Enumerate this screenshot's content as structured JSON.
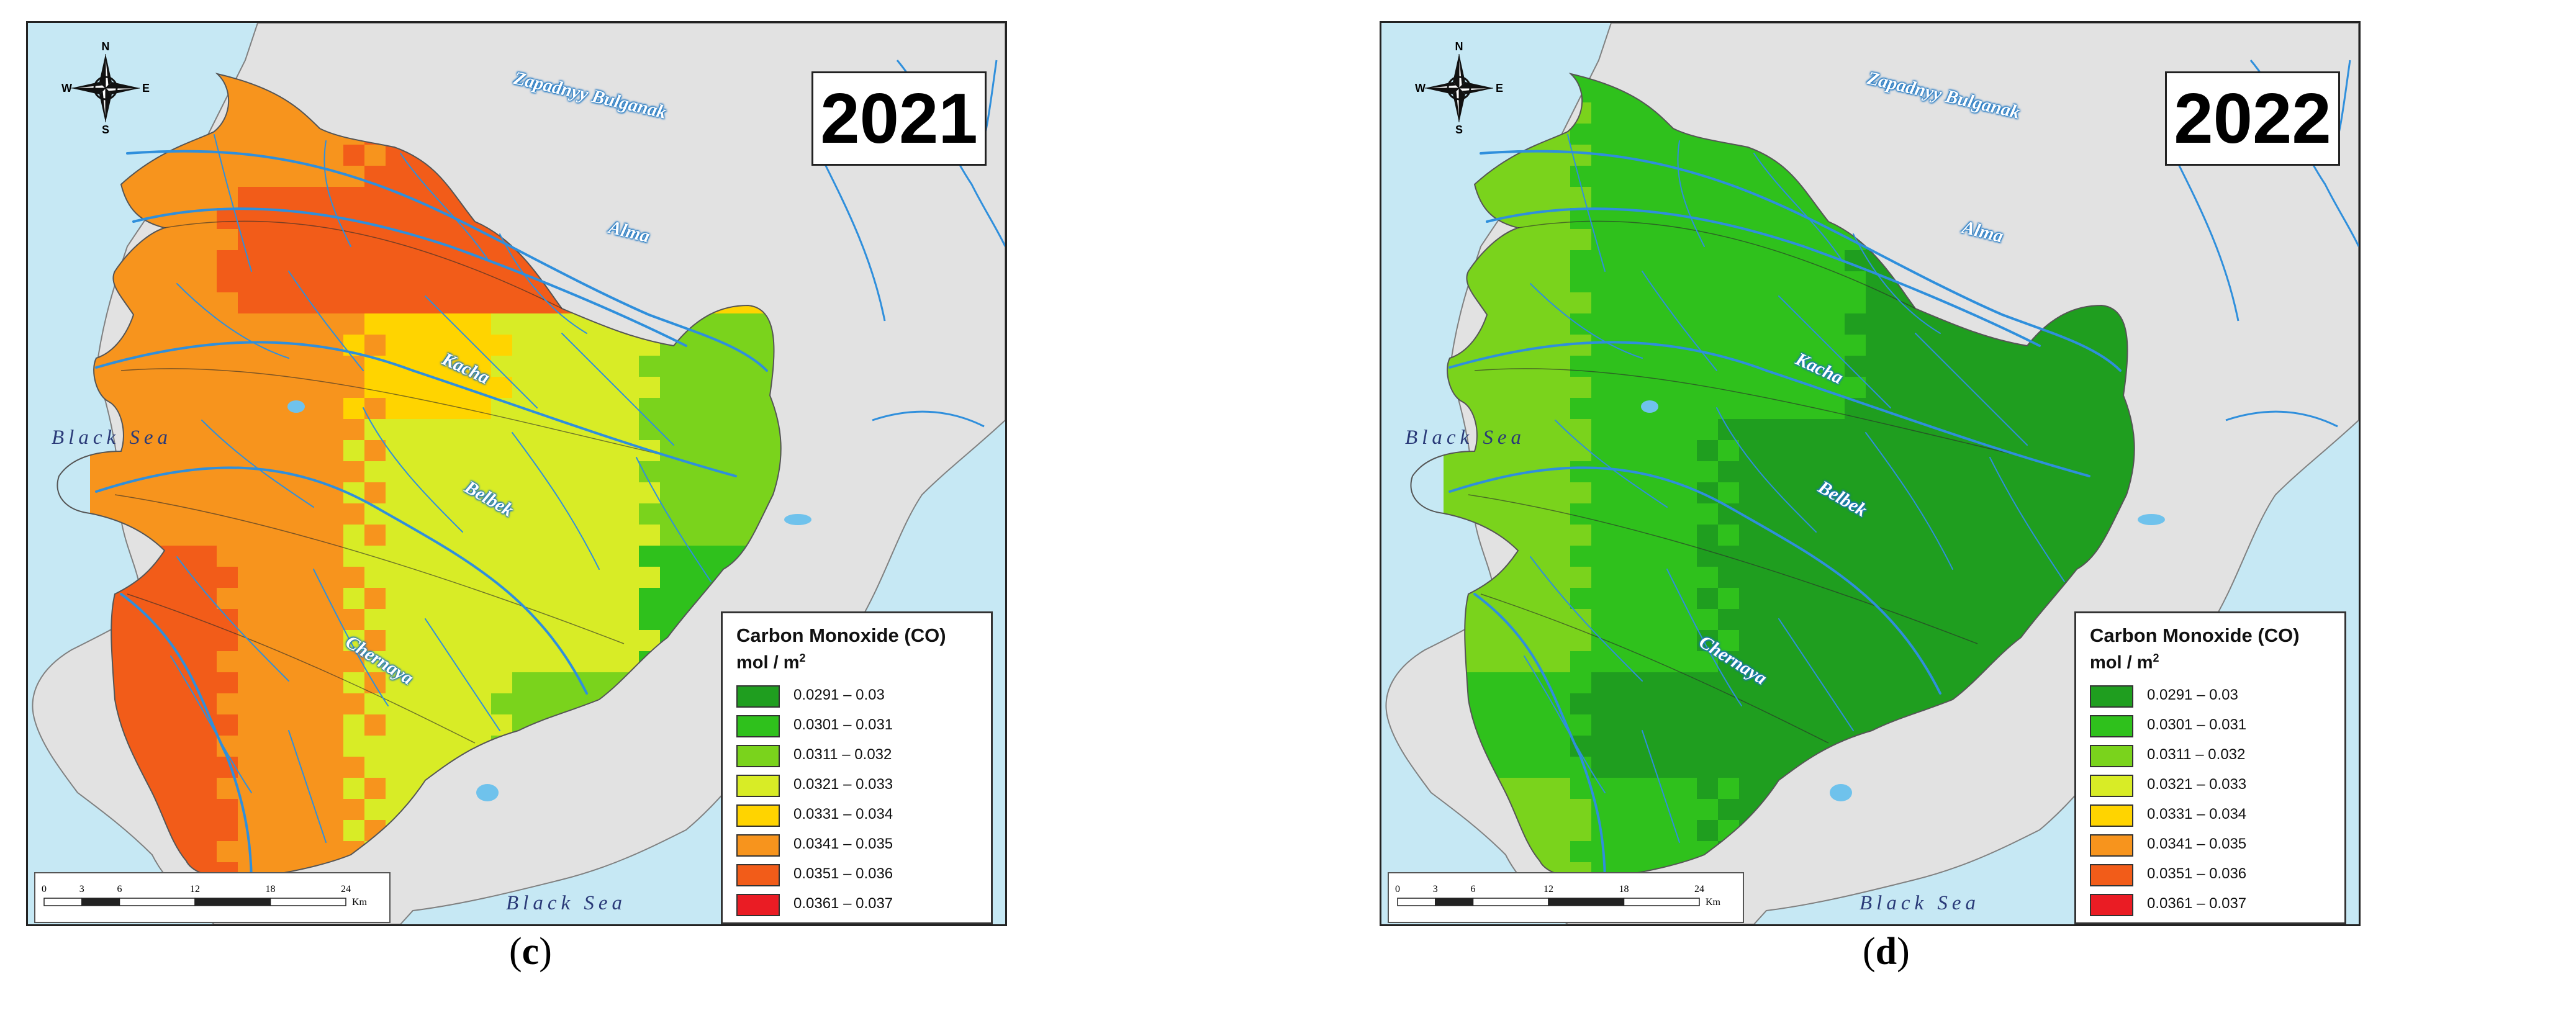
{
  "panels": [
    {
      "year": "2021",
      "caption_letter": "c",
      "scheme": [
        5,
        5,
        6,
        6,
        7,
        5,
        6,
        6,
        6,
        4,
        5,
        5,
        4,
        3,
        2,
        5,
        5,
        3,
        3,
        2,
        6,
        5,
        3,
        3,
        1,
        6,
        5,
        3,
        2,
        1,
        6,
        5,
        3,
        2,
        1
      ]
    },
    {
      "year": "2022",
      "caption_letter": "d",
      "scheme": [
        2,
        1,
        1,
        0,
        0,
        2,
        1,
        1,
        0,
        0,
        2,
        1,
        1,
        0,
        0,
        2,
        1,
        0,
        0,
        0,
        2,
        1,
        0,
        0,
        0,
        1,
        0,
        0,
        0,
        0,
        2,
        1,
        0,
        0,
        0
      ]
    }
  ],
  "legend": {
    "title": "Carbon Monoxide (CO)",
    "unit": "mol / m",
    "unit_sup": "2",
    "classes": [
      {
        "label": "0.0291 – 0.03",
        "color": "#1f9e1f"
      },
      {
        "label": "0.0301 – 0.031",
        "color": "#2fc11c"
      },
      {
        "label": "0.0311 – 0.032",
        "color": "#7ad31c"
      },
      {
        "label": "0.0321 – 0.033",
        "color": "#d8ec26"
      },
      {
        "label": "0.0331 – 0.034",
        "color": "#ffd400"
      },
      {
        "label": "0.0341 – 0.035",
        "color": "#f7941d"
      },
      {
        "label": "0.0351 – 0.036",
        "color": "#f25c19"
      },
      {
        "label": "0.0361 – 0.037",
        "color": "#ea1c24"
      }
    ]
  },
  "compass": {
    "n": "N",
    "s": "S",
    "e": "E",
    "w": "W"
  },
  "scale": {
    "ticks": [
      "0",
      "3",
      "6",
      "12",
      "18",
      "24"
    ],
    "unit": "Km"
  },
  "seas": {
    "west": "Black Sea",
    "south": "Black Sea"
  },
  "rivers": {
    "bulganak": "Zapadnyy Bulganak",
    "alma": "Alma",
    "kacha": "Kacha",
    "belbek": "Belbek",
    "chernaya": "Chernaya"
  },
  "colors": {
    "sea": "#c6e8f4",
    "land": "#e2e2e2",
    "river": "#2f8fdc"
  }
}
